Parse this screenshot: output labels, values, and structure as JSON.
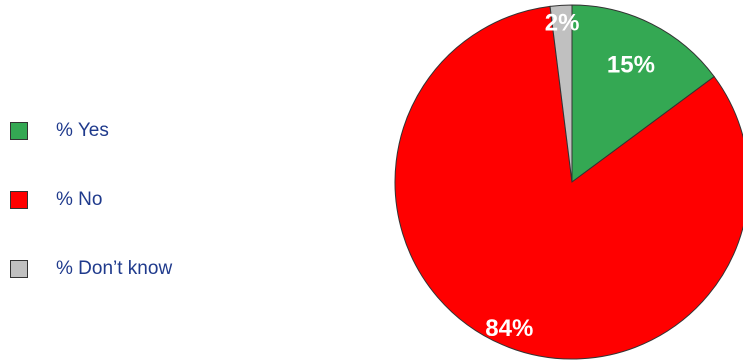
{
  "chart_data": {
    "type": "pie",
    "title": "",
    "legend_position": "left",
    "slices": [
      {
        "name": "% Yes",
        "value": 15,
        "label": "15%",
        "color": "#34a853"
      },
      {
        "name": "% No",
        "value": 84,
        "label": "84%",
        "color": "#ff0000"
      },
      {
        "name": "% Don’t know",
        "value": 2,
        "label": "2%",
        "color": "#c0c0c0"
      }
    ]
  }
}
